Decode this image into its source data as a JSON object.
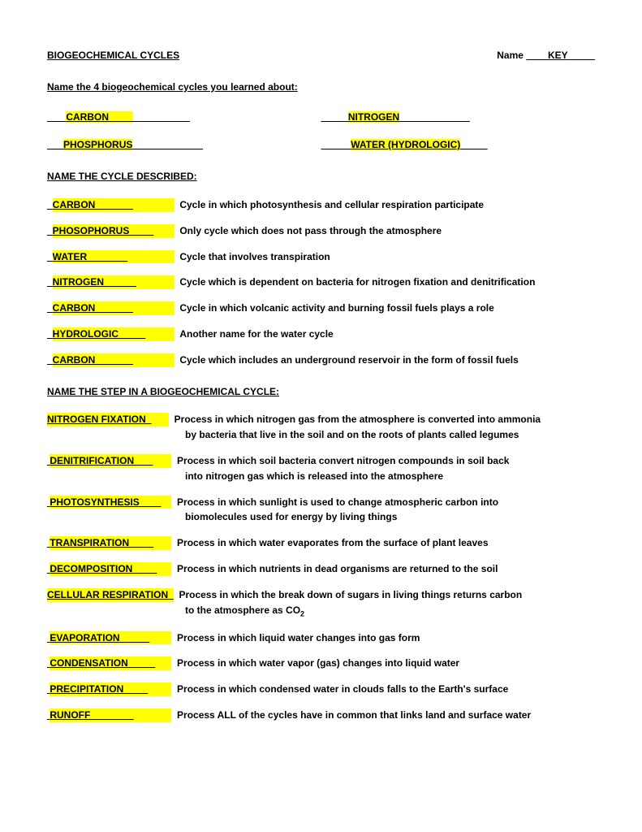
{
  "header": {
    "title": "BIOGEOCHEMICAL CYCLES",
    "name_label": "Name",
    "name_value": "KEY"
  },
  "prompt1": "Name the 4 biogeochemical cycles you learned about:",
  "cycles": {
    "c1": "CARBON",
    "c2": "NITROGEN",
    "c3": "PHOSPHORUS",
    "c4": "WATER (HYDROLOGIC)"
  },
  "section1": {
    "heading": "NAME THE CYCLE DESCRIBED:",
    "items": [
      {
        "ans": "CARBON",
        "desc": "Cycle in which photosynthesis and cellular respiration participate"
      },
      {
        "ans": "PHOSOPHORUS",
        "desc": "Only cycle which does not pass through the atmosphere"
      },
      {
        "ans": "WATER",
        "desc": "Cycle that involves transpiration"
      },
      {
        "ans": "NITROGEN",
        "desc": "Cycle which is dependent on bacteria for nitrogen fixation and denitrification"
      },
      {
        "ans": "CARBON",
        "desc": "Cycle in which volcanic activity and burning fossil fuels plays a role"
      },
      {
        "ans": "HYDROLOGIC",
        "desc": "Another name for the water cycle"
      },
      {
        "ans": "CARBON",
        "desc": "Cycle which includes an underground reservoir in the form of fossil fuels"
      }
    ]
  },
  "section2": {
    "heading": "NAME THE STEP IN A BIOGEOCHEMICAL CYCLE:",
    "items": [
      {
        "ans": "NITROGEN FIXATION",
        "desc": "Process in which nitrogen gas from the atmosphere is converted into ammonia",
        "cont": "by bacteria that live in the soil and on the roots of plants called legumes"
      },
      {
        "ans": "DENITRIFICATION",
        "desc": "Process in which soil bacteria convert nitrogen compounds in soil back",
        "cont": "into nitrogen gas which is released into the atmosphere"
      },
      {
        "ans": "PHOTOSYNTHESIS",
        "desc": "Process in which sunlight is used to change atmospheric carbon into",
        "cont": "biomolecules used for energy by living things"
      },
      {
        "ans": "TRANSPIRATION",
        "desc": "Process in which water evaporates from the surface of plant leaves"
      },
      {
        "ans": "DECOMPOSITION",
        "desc": "Process in which nutrients in dead organisms are returned to the soil"
      },
      {
        "ans": "CELLULAR RESPIRATION",
        "desc": "Process in which the break down of sugars in living things returns carbon",
        "cont_html": "to the atmosphere as CO"
      },
      {
        "ans": "EVAPORATION",
        "desc": "Process in which liquid water changes into gas form"
      },
      {
        "ans": "CONDENSATION",
        "desc": "Process in which water vapor (gas) changes into liquid water"
      },
      {
        "ans": "PRECIPITATION",
        "desc": "Process in which condensed water in clouds falls to the Earth's surface"
      },
      {
        "ans": "RUNOFF",
        "desc": "Process ALL of the cycles have in common that links land and surface water"
      }
    ]
  },
  "style": {
    "highlight_color": "#ffff00",
    "page_bg": "#ffffff",
    "text_color": "#000000",
    "font_family": "Verdana",
    "body_fontsize": 12
  }
}
